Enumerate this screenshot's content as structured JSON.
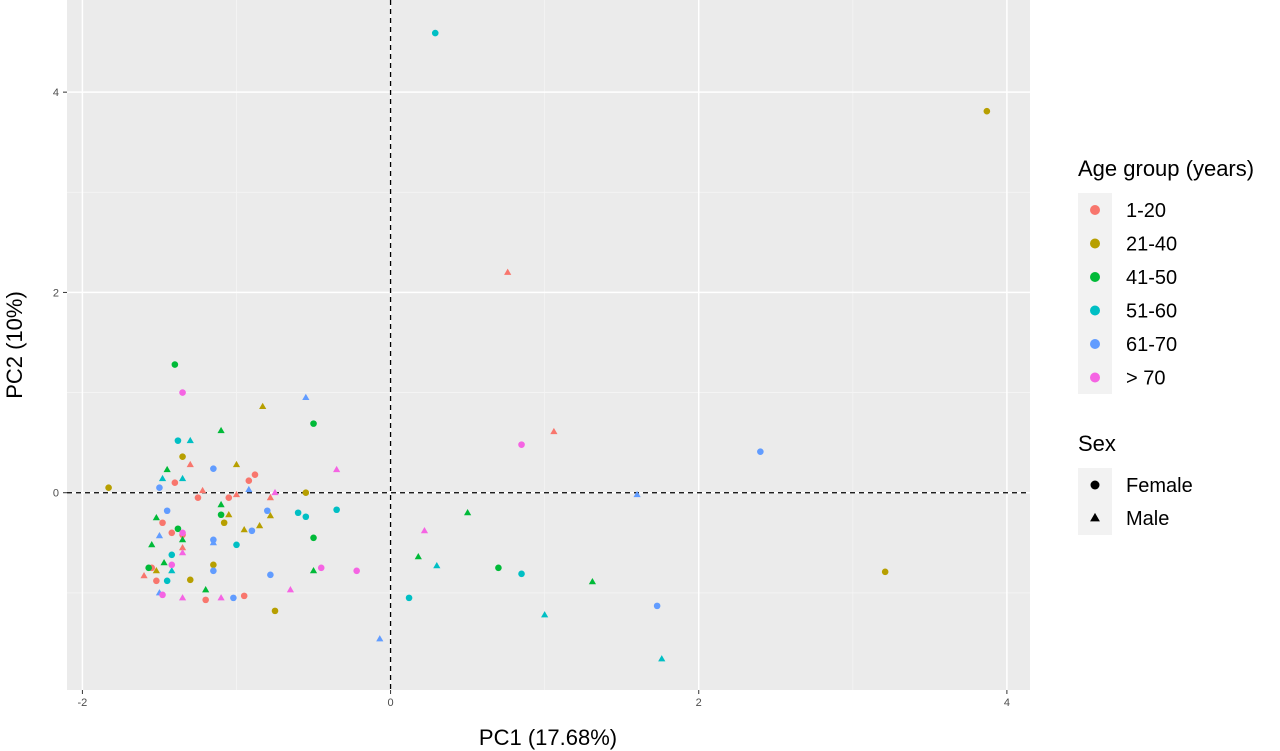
{
  "chart_data": {
    "type": "scatter",
    "xlabel": "PC1 (17.68%)",
    "ylabel": "PC2 (10%)",
    "xlim": [
      -2.1,
      4.15
    ],
    "ylim": [
      -1.97,
      4.92
    ],
    "xticks": [
      -2,
      0,
      2,
      4
    ],
    "yticks": [
      0,
      2,
      4
    ],
    "grid": true,
    "reference_lines": {
      "x": 0,
      "y": 0,
      "style": "dashed"
    },
    "legend_position": "right",
    "color_legend": {
      "title": "Age group (years)",
      "entries": [
        {
          "label": "1-20",
          "color": "#F8766D"
        },
        {
          "label": "21-40",
          "color": "#B79F00"
        },
        {
          "label": "41-50",
          "color": "#00BA38"
        },
        {
          "label": "51-60",
          "color": "#00BFC4"
        },
        {
          "label": "61-70",
          "color": "#619CFF"
        },
        {
          "label": "> 70",
          "color": "#F564E3"
        }
      ]
    },
    "shape_legend": {
      "title": "Sex",
      "entries": [
        {
          "label": "Female",
          "shape": "circle"
        },
        {
          "label": "Male",
          "shape": "triangle"
        }
      ]
    },
    "series": [
      {
        "group": "1-20",
        "sex": "Female",
        "points": [
          [
            -1.4,
            0.1
          ],
          [
            -1.55,
            -0.75
          ],
          [
            -1.52,
            -0.88
          ],
          [
            -1.42,
            -0.4
          ],
          [
            -1.35,
            -0.42
          ],
          [
            -1.05,
            -0.05
          ],
          [
            -0.92,
            0.12
          ],
          [
            -0.88,
            0.18
          ],
          [
            -0.95,
            -1.03
          ],
          [
            -1.2,
            -1.07
          ],
          [
            -1.25,
            -0.05
          ],
          [
            -1.48,
            -0.3
          ]
        ]
      },
      {
        "group": "1-20",
        "sex": "Male",
        "points": [
          [
            0.76,
            2.2
          ],
          [
            1.06,
            0.61
          ],
          [
            -1.6,
            -0.83
          ],
          [
            -1.0,
            -0.02
          ],
          [
            -1.3,
            0.28
          ],
          [
            -1.35,
            -0.55
          ],
          [
            -1.22,
            0.02
          ],
          [
            -0.78,
            -0.05
          ]
        ]
      },
      {
        "group": "21-40",
        "sex": "Female",
        "points": [
          [
            3.87,
            3.81
          ],
          [
            -1.83,
            0.05
          ],
          [
            3.21,
            -0.79
          ],
          [
            -1.35,
            0.36
          ],
          [
            -0.75,
            -1.18
          ],
          [
            -1.3,
            -0.87
          ],
          [
            -1.15,
            -0.72
          ],
          [
            -0.55,
            0
          ],
          [
            -1.08,
            -0.3
          ]
        ]
      },
      {
        "group": "21-40",
        "sex": "Male",
        "points": [
          [
            -0.83,
            0.86
          ],
          [
            -1.0,
            0.28
          ],
          [
            -1.05,
            -0.22
          ],
          [
            -0.78,
            -0.23
          ],
          [
            -0.85,
            -0.33
          ],
          [
            -0.95,
            -0.37
          ],
          [
            -1.52,
            -0.78
          ]
        ]
      },
      {
        "group": "41-50",
        "sex": "Female",
        "points": [
          [
            -1.4,
            1.28
          ],
          [
            -0.5,
            0.69
          ],
          [
            0.7,
            -0.75
          ],
          [
            -0.5,
            -0.45
          ],
          [
            -1.1,
            -0.22
          ],
          [
            -1.38,
            -0.36
          ],
          [
            -1.57,
            -0.75
          ]
        ]
      },
      {
        "group": "41-50",
        "sex": "Male",
        "points": [
          [
            0.5,
            -0.2
          ],
          [
            1.31,
            -0.89
          ],
          [
            0.18,
            -0.64
          ],
          [
            -0.5,
            -0.78
          ],
          [
            -1.1,
            0.62
          ],
          [
            -1.45,
            0.23
          ],
          [
            -1.52,
            -0.25
          ],
          [
            -1.1,
            -0.12
          ],
          [
            -1.55,
            -0.52
          ],
          [
            -1.35,
            -0.47
          ],
          [
            -1.47,
            -0.7
          ],
          [
            -1.2,
            -0.97
          ]
        ]
      },
      {
        "group": "51-60",
        "sex": "Female",
        "points": [
          [
            0.29,
            4.59
          ],
          [
            -1.38,
            0.52
          ],
          [
            -0.6,
            -0.2
          ],
          [
            -0.35,
            -0.17
          ],
          [
            -0.55,
            -0.24
          ],
          [
            -1.0,
            -0.52
          ],
          [
            0.12,
            -1.05
          ],
          [
            0.85,
            -0.81
          ],
          [
            -1.42,
            -0.62
          ],
          [
            -1.45,
            -0.88
          ]
        ]
      },
      {
        "group": "51-60",
        "sex": "Male",
        "points": [
          [
            -1.3,
            0.52
          ],
          [
            -1.48,
            0.14
          ],
          [
            1.0,
            -1.22
          ],
          [
            1.76,
            -1.66
          ],
          [
            0.3,
            -0.73
          ],
          [
            -1.35,
            0.14
          ],
          [
            -1.42,
            -0.78
          ]
        ]
      },
      {
        "group": "61-70",
        "sex": "Female",
        "points": [
          [
            2.4,
            0.41
          ],
          [
            1.73,
            -1.13
          ],
          [
            -1.15,
            0.24
          ],
          [
            -1.45,
            -0.18
          ],
          [
            -1.15,
            -0.47
          ],
          [
            -0.8,
            -0.18
          ],
          [
            -0.9,
            -0.38
          ],
          [
            -1.15,
            -0.78
          ],
          [
            -1.02,
            -1.05
          ],
          [
            -1.5,
            0.05
          ],
          [
            -0.78,
            -0.82
          ]
        ]
      },
      {
        "group": "61-70",
        "sex": "Male",
        "points": [
          [
            -0.55,
            0.95
          ],
          [
            1.6,
            -0.02
          ],
          [
            -0.07,
            -1.46
          ],
          [
            -0.92,
            0.03
          ],
          [
            -1.5,
            -1.0
          ],
          [
            -1.15,
            -0.5
          ],
          [
            -1.5,
            -0.43
          ]
        ]
      },
      {
        "group": "> 70",
        "sex": "Female",
        "points": [
          [
            -1.35,
            1.0
          ],
          [
            0.85,
            0.48
          ],
          [
            -0.45,
            -0.75
          ],
          [
            -0.22,
            -0.78
          ],
          [
            -1.42,
            -0.72
          ],
          [
            -1.48,
            -1.02
          ],
          [
            -1.35,
            -0.4
          ]
        ]
      },
      {
        "group": "> 70",
        "sex": "Male",
        "points": [
          [
            -0.35,
            0.23
          ],
          [
            0.22,
            -0.38
          ],
          [
            -0.65,
            -0.97
          ],
          [
            -1.35,
            -1.05
          ],
          [
            -1.1,
            -1.05
          ],
          [
            -1.35,
            -0.6
          ],
          [
            -0.75,
            0
          ]
        ]
      }
    ]
  }
}
